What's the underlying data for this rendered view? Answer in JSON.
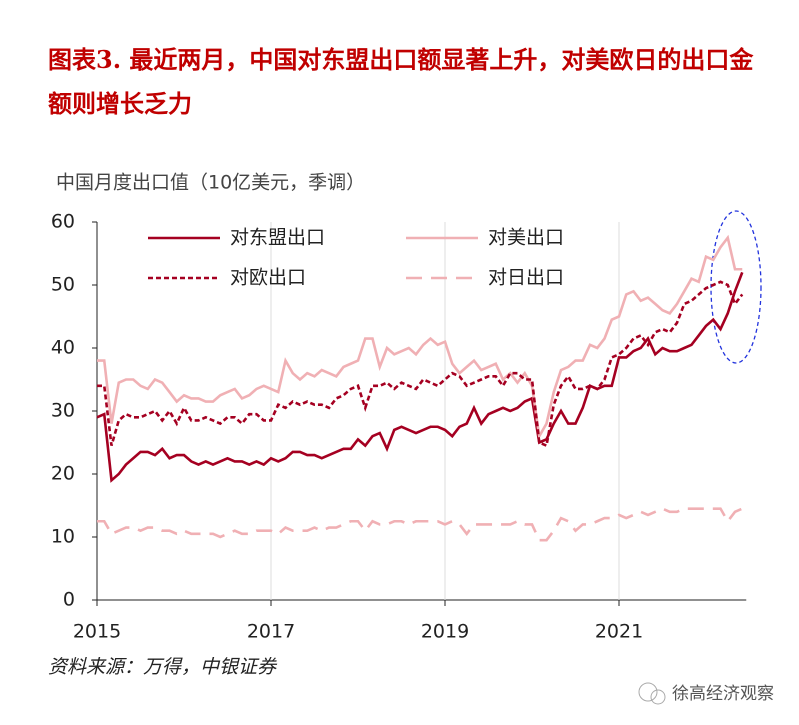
{
  "chart_data": {
    "type": "line",
    "title": "图表3. 最近两月，中国对东盟出口额显著上升，对美欧日的出口金额则增长乏力",
    "y_label": "中国月度出口值（10亿美元，季调）",
    "source": "资料来源：万得，中银证券",
    "watermark": "徐高经济观察",
    "categories": [
      "2015",
      null,
      null,
      null,
      null,
      null,
      null,
      null,
      null,
      null,
      null,
      null,
      null,
      null,
      null,
      null,
      null,
      null,
      null,
      null,
      null,
      null,
      null,
      null,
      "2017",
      null,
      null,
      null,
      null,
      null,
      null,
      null,
      null,
      null,
      null,
      null,
      null,
      null,
      null,
      null,
      null,
      null,
      null,
      null,
      null,
      null,
      null,
      null,
      "2019",
      null,
      null,
      null,
      null,
      null,
      null,
      null,
      null,
      null,
      null,
      null,
      null,
      null,
      null,
      null,
      null,
      null,
      null,
      null,
      null,
      null,
      null,
      null,
      "2021",
      null,
      null,
      null,
      null,
      null,
      null,
      null,
      null,
      null,
      null,
      null,
      null,
      null,
      null,
      null,
      null,
      null
    ],
    "ylim": [
      0,
      60
    ],
    "yticks": [
      0,
      10,
      20,
      30,
      40,
      50,
      60
    ],
    "grid": "x",
    "legend": "upper left",
    "series": [
      {
        "name": "对东盟出口",
        "color": "#a50021",
        "dash": "solid",
        "values": [
          29,
          29.5,
          19,
          20,
          21.5,
          22.5,
          23.5,
          23.5,
          23,
          24,
          22.5,
          23,
          23,
          22,
          21.5,
          22,
          21.5,
          22,
          22.5,
          22,
          22,
          21.5,
          22,
          21.5,
          22.5,
          22,
          22.5,
          23.5,
          23.5,
          23,
          23,
          22.5,
          23,
          23.5,
          24,
          24,
          25.5,
          24.5,
          26,
          26.5,
          24,
          27,
          27.5,
          27,
          26.5,
          27,
          27.5,
          27.5,
          27,
          26,
          27.5,
          28,
          30.5,
          28,
          29.5,
          30,
          30.5,
          30,
          30.5,
          31.5,
          32,
          25,
          25.5,
          28,
          30,
          28,
          28,
          30.5,
          34,
          33.5,
          34,
          34,
          38.5,
          38.5,
          39.5,
          40,
          41.5,
          39,
          40,
          39.5,
          39.5,
          40,
          40.5,
          42,
          43.5,
          44.5,
          43,
          45.5,
          49,
          52
        ]
      },
      {
        "name": "对美出口",
        "color": "#f0b0b4",
        "dash": "solid",
        "values": [
          38,
          38,
          28,
          34.5,
          35,
          35,
          34,
          33.5,
          35,
          34.5,
          33,
          31.5,
          32.5,
          32,
          32,
          31.5,
          31.5,
          32.5,
          33,
          33.5,
          32,
          32.5,
          33.5,
          34,
          33.5,
          33,
          38,
          36,
          35,
          36,
          35.5,
          36.5,
          36,
          35.5,
          37,
          37.5,
          38,
          41.5,
          41.5,
          37,
          40,
          39,
          39.5,
          40,
          39,
          40.5,
          41.5,
          40.5,
          41,
          37.5,
          36,
          37,
          38,
          36.5,
          37,
          37.5,
          35,
          36,
          34.5,
          36,
          34,
          26,
          28,
          33,
          36.5,
          37,
          38,
          38,
          40.5,
          40,
          41.5,
          44.5,
          45,
          48.5,
          49,
          47.5,
          48,
          47,
          46,
          45.5,
          47,
          49,
          51,
          50.5,
          54.5,
          54,
          56,
          57.5,
          52.5,
          52.5
        ]
      },
      {
        "name": "对欧出口",
        "color": "#a50021",
        "dash": "short",
        "values": [
          34,
          34,
          24.5,
          28.5,
          29.5,
          29,
          29,
          29.5,
          30,
          28.5,
          30,
          28,
          30.5,
          28.5,
          28.5,
          29,
          28.5,
          28,
          29,
          29,
          28,
          29.5,
          29.5,
          28.5,
          28.5,
          31,
          30.5,
          31.5,
          31,
          31.5,
          31,
          31,
          30.5,
          32,
          32.5,
          33.5,
          34,
          30.5,
          34,
          34,
          34.5,
          33.5,
          34.5,
          34,
          33.5,
          35,
          34.5,
          34,
          35,
          36,
          35.5,
          34,
          34.5,
          35,
          35.5,
          35.5,
          34,
          36,
          36,
          35,
          35,
          25,
          24.5,
          31,
          34,
          35.5,
          33.5,
          33.5,
          34,
          33.5,
          35,
          38.5,
          39,
          40,
          41.5,
          42,
          40.5,
          42.5,
          43,
          42.5,
          44,
          47,
          47.5,
          48.5,
          49.5,
          50,
          50.5,
          50,
          47,
          48.5
        ]
      },
      {
        "name": "对日出口",
        "color": "#f0b0b4",
        "dash": "long",
        "values": [
          12.5,
          12.5,
          10.5,
          11,
          11.5,
          11.5,
          11,
          11.5,
          11.5,
          11,
          11,
          10.5,
          11,
          10.5,
          10.5,
          10.5,
          10.5,
          10,
          10.5,
          11,
          10.5,
          10.5,
          11,
          11,
          11,
          10.5,
          11.5,
          11,
          11,
          11,
          11.5,
          11,
          11.5,
          11.5,
          12,
          12.5,
          12.5,
          11,
          12.5,
          12,
          12,
          12.5,
          12.5,
          12,
          12.5,
          12.5,
          12.5,
          12.5,
          12,
          12.5,
          12,
          10.5,
          12,
          12,
          12,
          12,
          12,
          12,
          12.5,
          12,
          12,
          9.5,
          9.5,
          11,
          13,
          12.5,
          11,
          12,
          12,
          12.5,
          13,
          13,
          13.5,
          13,
          13.5,
          14,
          13.5,
          14,
          14.5,
          14,
          14,
          14.5,
          14.5,
          14.5,
          14.5,
          14.5,
          14.5,
          12.5,
          14,
          14.5
        ]
      }
    ]
  }
}
